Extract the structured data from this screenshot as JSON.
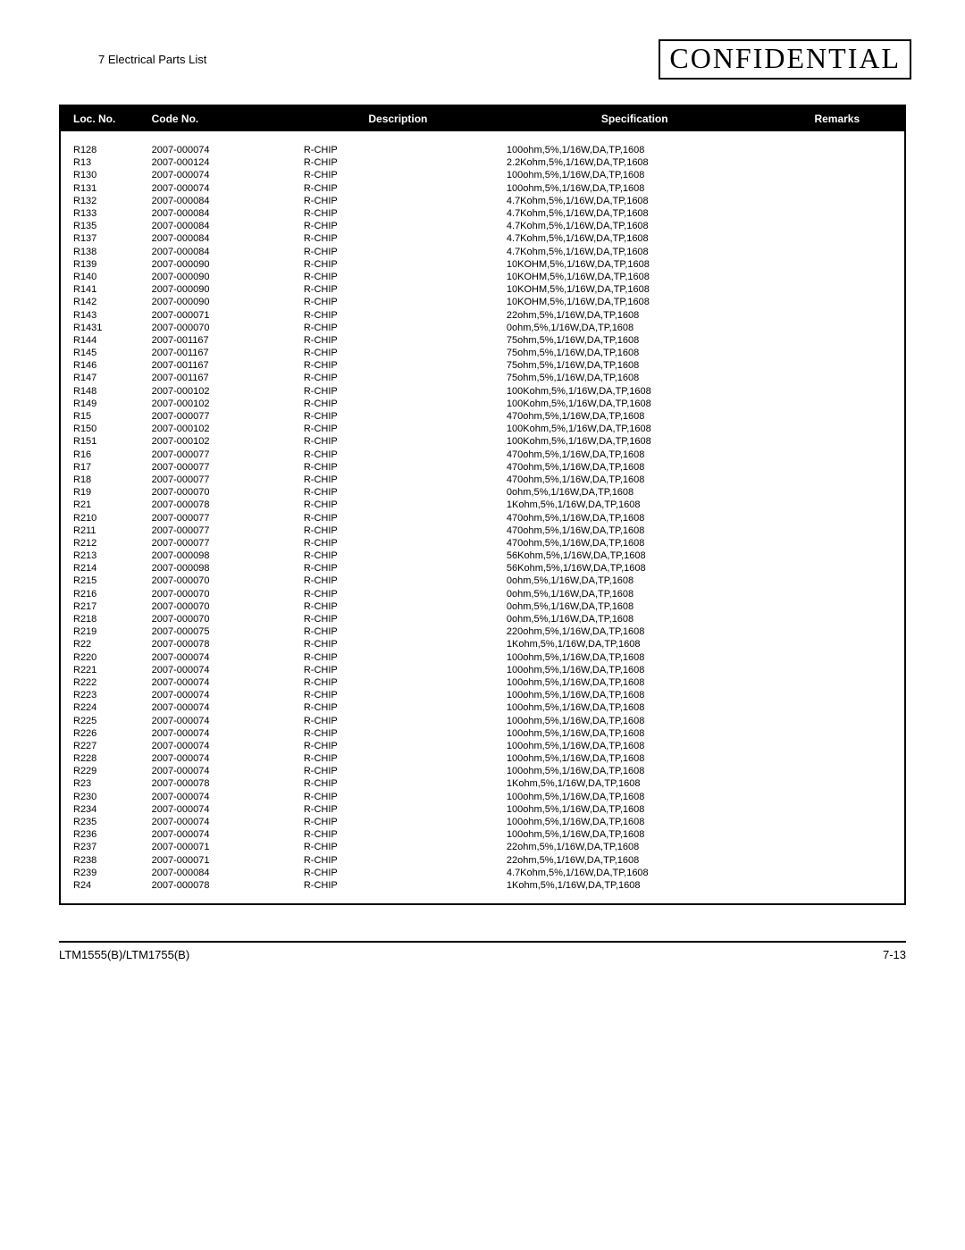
{
  "header": {
    "section_title": "7 Electrical Parts List",
    "stamp": "CONFIDENTIAL"
  },
  "table": {
    "columns": {
      "loc": "Loc. No.",
      "code": "Code No.",
      "desc": "Description",
      "spec": "Specification",
      "remarks": "Remarks"
    },
    "rows": [
      {
        "loc": "R128",
        "code": "2007-000074",
        "desc": "R-CHIP",
        "spec": "100ohm,5%,1/16W,DA,TP,1608",
        "rem": ""
      },
      {
        "loc": "R13",
        "code": "2007-000124",
        "desc": "R-CHIP",
        "spec": "2.2Kohm,5%,1/16W,DA,TP,1608",
        "rem": ""
      },
      {
        "loc": "R130",
        "code": "2007-000074",
        "desc": "R-CHIP",
        "spec": "100ohm,5%,1/16W,DA,TP,1608",
        "rem": ""
      },
      {
        "loc": "R131",
        "code": "2007-000074",
        "desc": "R-CHIP",
        "spec": "100ohm,5%,1/16W,DA,TP,1608",
        "rem": ""
      },
      {
        "loc": "R132",
        "code": "2007-000084",
        "desc": "R-CHIP",
        "spec": "4.7Kohm,5%,1/16W,DA,TP,1608",
        "rem": ""
      },
      {
        "loc": "R133",
        "code": "2007-000084",
        "desc": "R-CHIP",
        "spec": "4.7Kohm,5%,1/16W,DA,TP,1608",
        "rem": ""
      },
      {
        "loc": "R135",
        "code": "2007-000084",
        "desc": "R-CHIP",
        "spec": "4.7Kohm,5%,1/16W,DA,TP,1608",
        "rem": ""
      },
      {
        "loc": "R137",
        "code": "2007-000084",
        "desc": "R-CHIP",
        "spec": "4.7Kohm,5%,1/16W,DA,TP,1608",
        "rem": ""
      },
      {
        "loc": "R138",
        "code": "2007-000084",
        "desc": "R-CHIP",
        "spec": "4.7Kohm,5%,1/16W,DA,TP,1608",
        "rem": ""
      },
      {
        "loc": "R139",
        "code": "2007-000090",
        "desc": "R-CHIP",
        "spec": "10KOHM,5%,1/16W,DA,TP,1608",
        "rem": ""
      },
      {
        "loc": "R140",
        "code": "2007-000090",
        "desc": "R-CHIP",
        "spec": "10KOHM,5%,1/16W,DA,TP,1608",
        "rem": ""
      },
      {
        "loc": "R141",
        "code": "2007-000090",
        "desc": "R-CHIP",
        "spec": "10KOHM,5%,1/16W,DA,TP,1608",
        "rem": ""
      },
      {
        "loc": "R142",
        "code": "2007-000090",
        "desc": "R-CHIP",
        "spec": "10KOHM,5%,1/16W,DA,TP,1608",
        "rem": ""
      },
      {
        "loc": "R143",
        "code": "2007-000071",
        "desc": "R-CHIP",
        "spec": "22ohm,5%,1/16W,DA,TP,1608",
        "rem": ""
      },
      {
        "loc": "R1431",
        "code": "2007-000070",
        "desc": "R-CHIP",
        "spec": "0ohm,5%,1/16W,DA,TP,1608",
        "rem": ""
      },
      {
        "loc": "R144",
        "code": "2007-001167",
        "desc": "R-CHIP",
        "spec": "75ohm,5%,1/16W,DA,TP,1608",
        "rem": ""
      },
      {
        "loc": "R145",
        "code": "2007-001167",
        "desc": "R-CHIP",
        "spec": "75ohm,5%,1/16W,DA,TP,1608",
        "rem": ""
      },
      {
        "loc": "R146",
        "code": "2007-001167",
        "desc": "R-CHIP",
        "spec": "75ohm,5%,1/16W,DA,TP,1608",
        "rem": ""
      },
      {
        "loc": "R147",
        "code": "2007-001167",
        "desc": "R-CHIP",
        "spec": "75ohm,5%,1/16W,DA,TP,1608",
        "rem": ""
      },
      {
        "loc": "R148",
        "code": "2007-000102",
        "desc": "R-CHIP",
        "spec": "100Kohm,5%,1/16W,DA,TP,1608",
        "rem": ""
      },
      {
        "loc": "R149",
        "code": "2007-000102",
        "desc": "R-CHIP",
        "spec": "100Kohm,5%,1/16W,DA,TP,1608",
        "rem": ""
      },
      {
        "loc": "R15",
        "code": "2007-000077",
        "desc": "R-CHIP",
        "spec": "470ohm,5%,1/16W,DA,TP,1608",
        "rem": ""
      },
      {
        "loc": "R150",
        "code": "2007-000102",
        "desc": "R-CHIP",
        "spec": "100Kohm,5%,1/16W,DA,TP,1608",
        "rem": ""
      },
      {
        "loc": "R151",
        "code": "2007-000102",
        "desc": "R-CHIP",
        "spec": "100Kohm,5%,1/16W,DA,TP,1608",
        "rem": ""
      },
      {
        "loc": "R16",
        "code": "2007-000077",
        "desc": "R-CHIP",
        "spec": "470ohm,5%,1/16W,DA,TP,1608",
        "rem": ""
      },
      {
        "loc": "R17",
        "code": "2007-000077",
        "desc": "R-CHIP",
        "spec": "470ohm,5%,1/16W,DA,TP,1608",
        "rem": ""
      },
      {
        "loc": "R18",
        "code": "2007-000077",
        "desc": "R-CHIP",
        "spec": "470ohm,5%,1/16W,DA,TP,1608",
        "rem": ""
      },
      {
        "loc": "R19",
        "code": "2007-000070",
        "desc": "R-CHIP",
        "spec": "0ohm,5%,1/16W,DA,TP,1608",
        "rem": ""
      },
      {
        "loc": "R21",
        "code": "2007-000078",
        "desc": "R-CHIP",
        "spec": "1Kohm,5%,1/16W,DA,TP,1608",
        "rem": ""
      },
      {
        "loc": "R210",
        "code": "2007-000077",
        "desc": "R-CHIP",
        "spec": "470ohm,5%,1/16W,DA,TP,1608",
        "rem": ""
      },
      {
        "loc": "R211",
        "code": "2007-000077",
        "desc": "R-CHIP",
        "spec": "470ohm,5%,1/16W,DA,TP,1608",
        "rem": ""
      },
      {
        "loc": "R212",
        "code": "2007-000077",
        "desc": "R-CHIP",
        "spec": "470ohm,5%,1/16W,DA,TP,1608",
        "rem": ""
      },
      {
        "loc": "R213",
        "code": "2007-000098",
        "desc": "R-CHIP",
        "spec": "56Kohm,5%,1/16W,DA,TP,1608",
        "rem": ""
      },
      {
        "loc": "R214",
        "code": "2007-000098",
        "desc": "R-CHIP",
        "spec": "56Kohm,5%,1/16W,DA,TP,1608",
        "rem": ""
      },
      {
        "loc": "R215",
        "code": "2007-000070",
        "desc": "R-CHIP",
        "spec": "0ohm,5%,1/16W,DA,TP,1608",
        "rem": ""
      },
      {
        "loc": "R216",
        "code": "2007-000070",
        "desc": "R-CHIP",
        "spec": "0ohm,5%,1/16W,DA,TP,1608",
        "rem": ""
      },
      {
        "loc": "R217",
        "code": "2007-000070",
        "desc": "R-CHIP",
        "spec": "0ohm,5%,1/16W,DA,TP,1608",
        "rem": ""
      },
      {
        "loc": "R218",
        "code": "2007-000070",
        "desc": "R-CHIP",
        "spec": "0ohm,5%,1/16W,DA,TP,1608",
        "rem": ""
      },
      {
        "loc": "R219",
        "code": "2007-000075",
        "desc": "R-CHIP",
        "spec": "220ohm,5%,1/16W,DA,TP,1608",
        "rem": ""
      },
      {
        "loc": "R22",
        "code": "2007-000078",
        "desc": "R-CHIP",
        "spec": "1Kohm,5%,1/16W,DA,TP,1608",
        "rem": ""
      },
      {
        "loc": "R220",
        "code": "2007-000074",
        "desc": "R-CHIP",
        "spec": "100ohm,5%,1/16W,DA,TP,1608",
        "rem": ""
      },
      {
        "loc": "R221",
        "code": "2007-000074",
        "desc": "R-CHIP",
        "spec": "100ohm,5%,1/16W,DA,TP,1608",
        "rem": ""
      },
      {
        "loc": "R222",
        "code": "2007-000074",
        "desc": "R-CHIP",
        "spec": "100ohm,5%,1/16W,DA,TP,1608",
        "rem": ""
      },
      {
        "loc": "R223",
        "code": "2007-000074",
        "desc": "R-CHIP",
        "spec": "100ohm,5%,1/16W,DA,TP,1608",
        "rem": ""
      },
      {
        "loc": "R224",
        "code": "2007-000074",
        "desc": "R-CHIP",
        "spec": "100ohm,5%,1/16W,DA,TP,1608",
        "rem": ""
      },
      {
        "loc": "R225",
        "code": "2007-000074",
        "desc": "R-CHIP",
        "spec": "100ohm,5%,1/16W,DA,TP,1608",
        "rem": ""
      },
      {
        "loc": "R226",
        "code": "2007-000074",
        "desc": "R-CHIP",
        "spec": "100ohm,5%,1/16W,DA,TP,1608",
        "rem": ""
      },
      {
        "loc": "R227",
        "code": "2007-000074",
        "desc": "R-CHIP",
        "spec": "100ohm,5%,1/16W,DA,TP,1608",
        "rem": ""
      },
      {
        "loc": "R228",
        "code": "2007-000074",
        "desc": "R-CHIP",
        "spec": "100ohm,5%,1/16W,DA,TP,1608",
        "rem": ""
      },
      {
        "loc": "R229",
        "code": "2007-000074",
        "desc": "R-CHIP",
        "spec": "100ohm,5%,1/16W,DA,TP,1608",
        "rem": ""
      },
      {
        "loc": "R23",
        "code": "2007-000078",
        "desc": "R-CHIP",
        "spec": "1Kohm,5%,1/16W,DA,TP,1608",
        "rem": ""
      },
      {
        "loc": "R230",
        "code": "2007-000074",
        "desc": "R-CHIP",
        "spec": "100ohm,5%,1/16W,DA,TP,1608",
        "rem": ""
      },
      {
        "loc": "R234",
        "code": "2007-000074",
        "desc": "R-CHIP",
        "spec": "100ohm,5%,1/16W,DA,TP,1608",
        "rem": ""
      },
      {
        "loc": "R235",
        "code": "2007-000074",
        "desc": "R-CHIP",
        "spec": "100ohm,5%,1/16W,DA,TP,1608",
        "rem": ""
      },
      {
        "loc": "R236",
        "code": "2007-000074",
        "desc": "R-CHIP",
        "spec": "100ohm,5%,1/16W,DA,TP,1608",
        "rem": ""
      },
      {
        "loc": "R237",
        "code": "2007-000071",
        "desc": "R-CHIP",
        "spec": "22ohm,5%,1/16W,DA,TP,1608",
        "rem": ""
      },
      {
        "loc": "R238",
        "code": "2007-000071",
        "desc": "R-CHIP",
        "spec": "22ohm,5%,1/16W,DA,TP,1608",
        "rem": ""
      },
      {
        "loc": "R239",
        "code": "2007-000084",
        "desc": "R-CHIP",
        "spec": "4.7Kohm,5%,1/16W,DA,TP,1608",
        "rem": ""
      },
      {
        "loc": "R24",
        "code": "2007-000078",
        "desc": "R-CHIP",
        "spec": "1Kohm,5%,1/16W,DA,TP,1608",
        "rem": ""
      }
    ]
  },
  "footer": {
    "left": "LTM1555(B)/LTM1755(B)",
    "right": "7-13"
  }
}
